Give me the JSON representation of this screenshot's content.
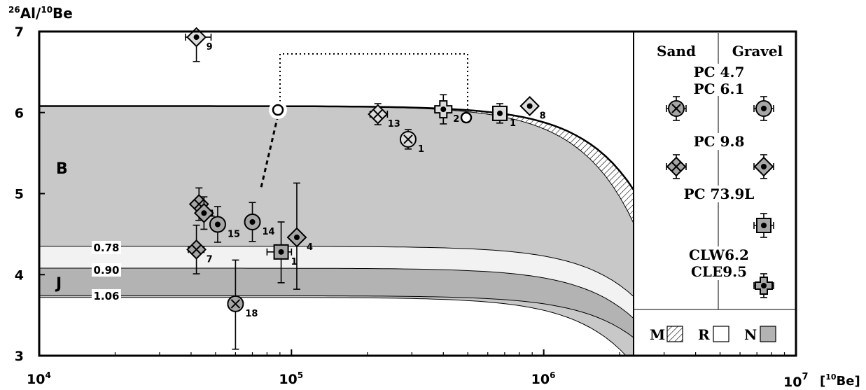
{
  "chart_data": {
    "type": "scatter",
    "y_label": {
      "sup": "26",
      "main": "Al/",
      "sup2": "10",
      "main2": "Be"
    },
    "x_label": {
      "sup": "10",
      "main": "Be]",
      "prefix": "["
    },
    "x_scale": "log",
    "xlim": [
      10000,
      10000000
    ],
    "ylim": [
      3,
      7
    ],
    "x_ticks": [
      {
        "value": 10000,
        "base": "10",
        "exp": "4"
      },
      {
        "value": 100000,
        "base": "10",
        "exp": "5"
      },
      {
        "value": 1000000,
        "base": "10",
        "exp": "6"
      },
      {
        "value": 10000000,
        "base": "10",
        "exp": "7"
      }
    ],
    "y_ticks": [
      "3",
      "4",
      "5",
      "6",
      "7"
    ],
    "region_labels": {
      "burial": "B",
      "junk": "J"
    },
    "burial_lines": [
      "0.78",
      "0.90",
      "1.06"
    ],
    "legend": {
      "col_sand": "Sand",
      "col_gravel": "Gravel",
      "groups": [
        {
          "label": "PC 4.7",
          "label2": "PC 6.1",
          "sand": "circle-x",
          "gravel": "circle-dot"
        },
        {
          "label": "PC 9.8",
          "sand": "diamond-x",
          "gravel": "diamond-dot"
        },
        {
          "label": "PC 73.9L",
          "gravel": "square-dot"
        },
        {
          "label": "CLW6.2",
          "label2": "CLE9.5",
          "gravel": "cross-dot"
        }
      ],
      "patterns": [
        {
          "label": "M",
          "fill": "hatch"
        },
        {
          "label": "R",
          "fill": "white"
        },
        {
          "label": "N",
          "fill": "#b3b3b3"
        }
      ]
    },
    "colors": {
      "envelope": "#c8c8c8",
      "junk_band": "#b3b3b3",
      "marker_fill": "#a6a6a6",
      "marker_fill_light": "#dcdcdc"
    },
    "points": [
      {
        "x": 42000,
        "y": 6.93,
        "yerr": [
          0.3,
          0.05
        ],
        "xerr": [
          38000,
          48000
        ],
        "marker": "diamond-dot",
        "label": "9",
        "light": true
      },
      {
        "x": 220000,
        "y": 5.98,
        "yerr": [
          0.13,
          0.13
        ],
        "xerr": [
          205000,
          240000
        ],
        "marker": "diamond-x",
        "label": "13",
        "light": true
      },
      {
        "x": 290000,
        "y": 5.67,
        "yerr": [
          0.12,
          0.12
        ],
        "xerr": [
          275000,
          305000
        ],
        "marker": "circle-x",
        "label": "1",
        "light": true
      },
      {
        "x": 400000,
        "y": 6.04,
        "yerr": [
          0.18,
          0.18
        ],
        "xerr": [
          370000,
          430000
        ],
        "marker": "cross-dot",
        "label": "2",
        "light": true
      },
      {
        "x": 670000,
        "y": 5.99,
        "yerr": [
          0.12,
          0.12
        ],
        "xerr": [
          630000,
          710000
        ],
        "marker": "square-dot",
        "label": "1",
        "light": true
      },
      {
        "x": 880000,
        "y": 6.08,
        "yerr": [
          0.05,
          0.05
        ],
        "xerr": [
          850000,
          910000
        ],
        "marker": "diamond-dot",
        "label": "8",
        "light": true
      },
      {
        "x": 43000,
        "y": 4.87,
        "yerr": [
          0.2,
          0.2
        ],
        "xerr": [
          41000,
          45000
        ],
        "marker": "diamond-x",
        "label": "1",
        "light": false
      },
      {
        "x": 45000,
        "y": 4.76,
        "yerr": [
          0.2,
          0.2
        ],
        "xerr": [
          43000,
          47000
        ],
        "marker": "diamond-dot",
        "label": "3",
        "light": false
      },
      {
        "x": 51000,
        "y": 4.62,
        "yerr": [
          0.22,
          0.22
        ],
        "xerr": [
          48000,
          54000
        ],
        "marker": "circle-dot",
        "label": "15",
        "light": false
      },
      {
        "x": 70000,
        "y": 4.65,
        "yerr": [
          0.24,
          0.24
        ],
        "xerr": [
          66000,
          74000
        ],
        "marker": "circle-dot",
        "label": "14",
        "light": false
      },
      {
        "x": 42000,
        "y": 4.31,
        "yerr": [
          0.3,
          0.3
        ],
        "xerr": [
          39000,
          45000
        ],
        "marker": "diamond-x",
        "label": "7",
        "light": false
      },
      {
        "x": 91000,
        "y": 4.28,
        "yerr": [
          0.38,
          0.37
        ],
        "xerr": [
          80000,
          100000
        ],
        "marker": "square-dot",
        "label": "1",
        "light": false
      },
      {
        "x": 105000,
        "y": 4.46,
        "yerr": [
          0.64,
          0.67
        ],
        "xerr": [
          100000,
          110000
        ],
        "marker": "diamond-dot",
        "label": "4",
        "light": false
      },
      {
        "x": 60000,
        "y": 3.64,
        "yerr": [
          0.56,
          0.54
        ],
        "xerr": [
          57000,
          63000
        ],
        "marker": "circle-x",
        "label": "18",
        "light": false
      }
    ]
  }
}
